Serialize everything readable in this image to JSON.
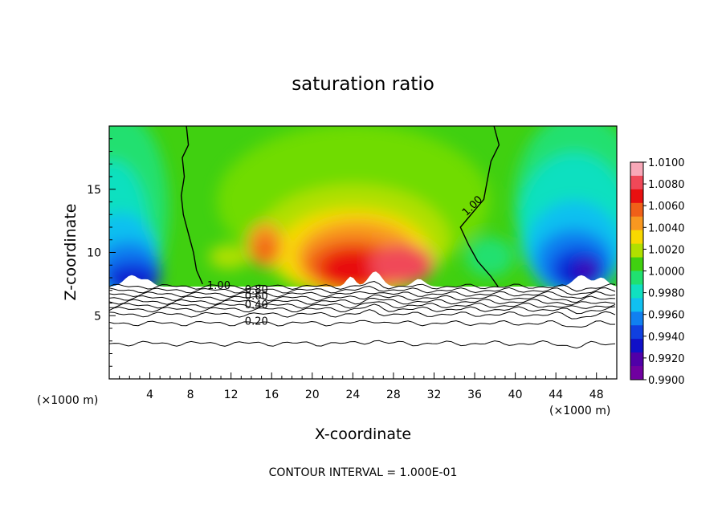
{
  "chart_data": {
    "type": "contour",
    "title": "saturation ratio",
    "xlabel": "X-coordinate",
    "ylabel": "Z-coordinate",
    "x_unit": "(×1000 m)",
    "y_unit": "(×1000 m)",
    "xlim": [
      0,
      50
    ],
    "ylim": [
      0,
      20
    ],
    "x_ticks": [
      4,
      8,
      12,
      16,
      20,
      24,
      28,
      32,
      36,
      40,
      44,
      48
    ],
    "y_ticks": [
      5,
      10,
      15
    ],
    "footer": "CONTOUR INTERVAL = 1.000E-01",
    "colorbar": {
      "ticks": [
        "1.0100",
        "1.0080",
        "1.0060",
        "1.0040",
        "1.0020",
        "1.0000",
        "0.9980",
        "0.9960",
        "0.9940",
        "0.9920",
        "0.9900"
      ],
      "colors": [
        "#f8a8b8",
        "#f04858",
        "#e81010",
        "#f06018",
        "#f89820",
        "#f8d800",
        "#b0e000",
        "#40d010",
        "#20e070",
        "#10e0c0",
        "#10c0f0",
        "#1080f0",
        "#1040e0",
        "#1010c8",
        "#5000a8",
        "#7000a0"
      ]
    },
    "contour_labels": [
      {
        "text": "1.00",
        "x": 36,
        "z": 13.5
      },
      {
        "text": "1.00",
        "x": 10.8,
        "z": 7.1
      },
      {
        "text": "0.80",
        "x": 14.5,
        "z": 6.8
      },
      {
        "text": "0.60",
        "x": 14.5,
        "z": 6.3
      },
      {
        "text": "0.40",
        "x": 14.5,
        "z": 5.6
      },
      {
        "text": "0.20",
        "x": 14.5,
        "z": 4.3
      }
    ],
    "contour_levels": [
      1.0,
      0.9,
      0.8,
      0.7,
      0.6,
      0.5,
      0.4,
      0.3,
      0.2,
      0.1
    ],
    "contour_base_z": [
      7.3,
      7.0,
      6.7,
      6.4,
      6.1,
      5.8,
      5.5,
      5.1,
      4.4,
      2.8
    ]
  }
}
